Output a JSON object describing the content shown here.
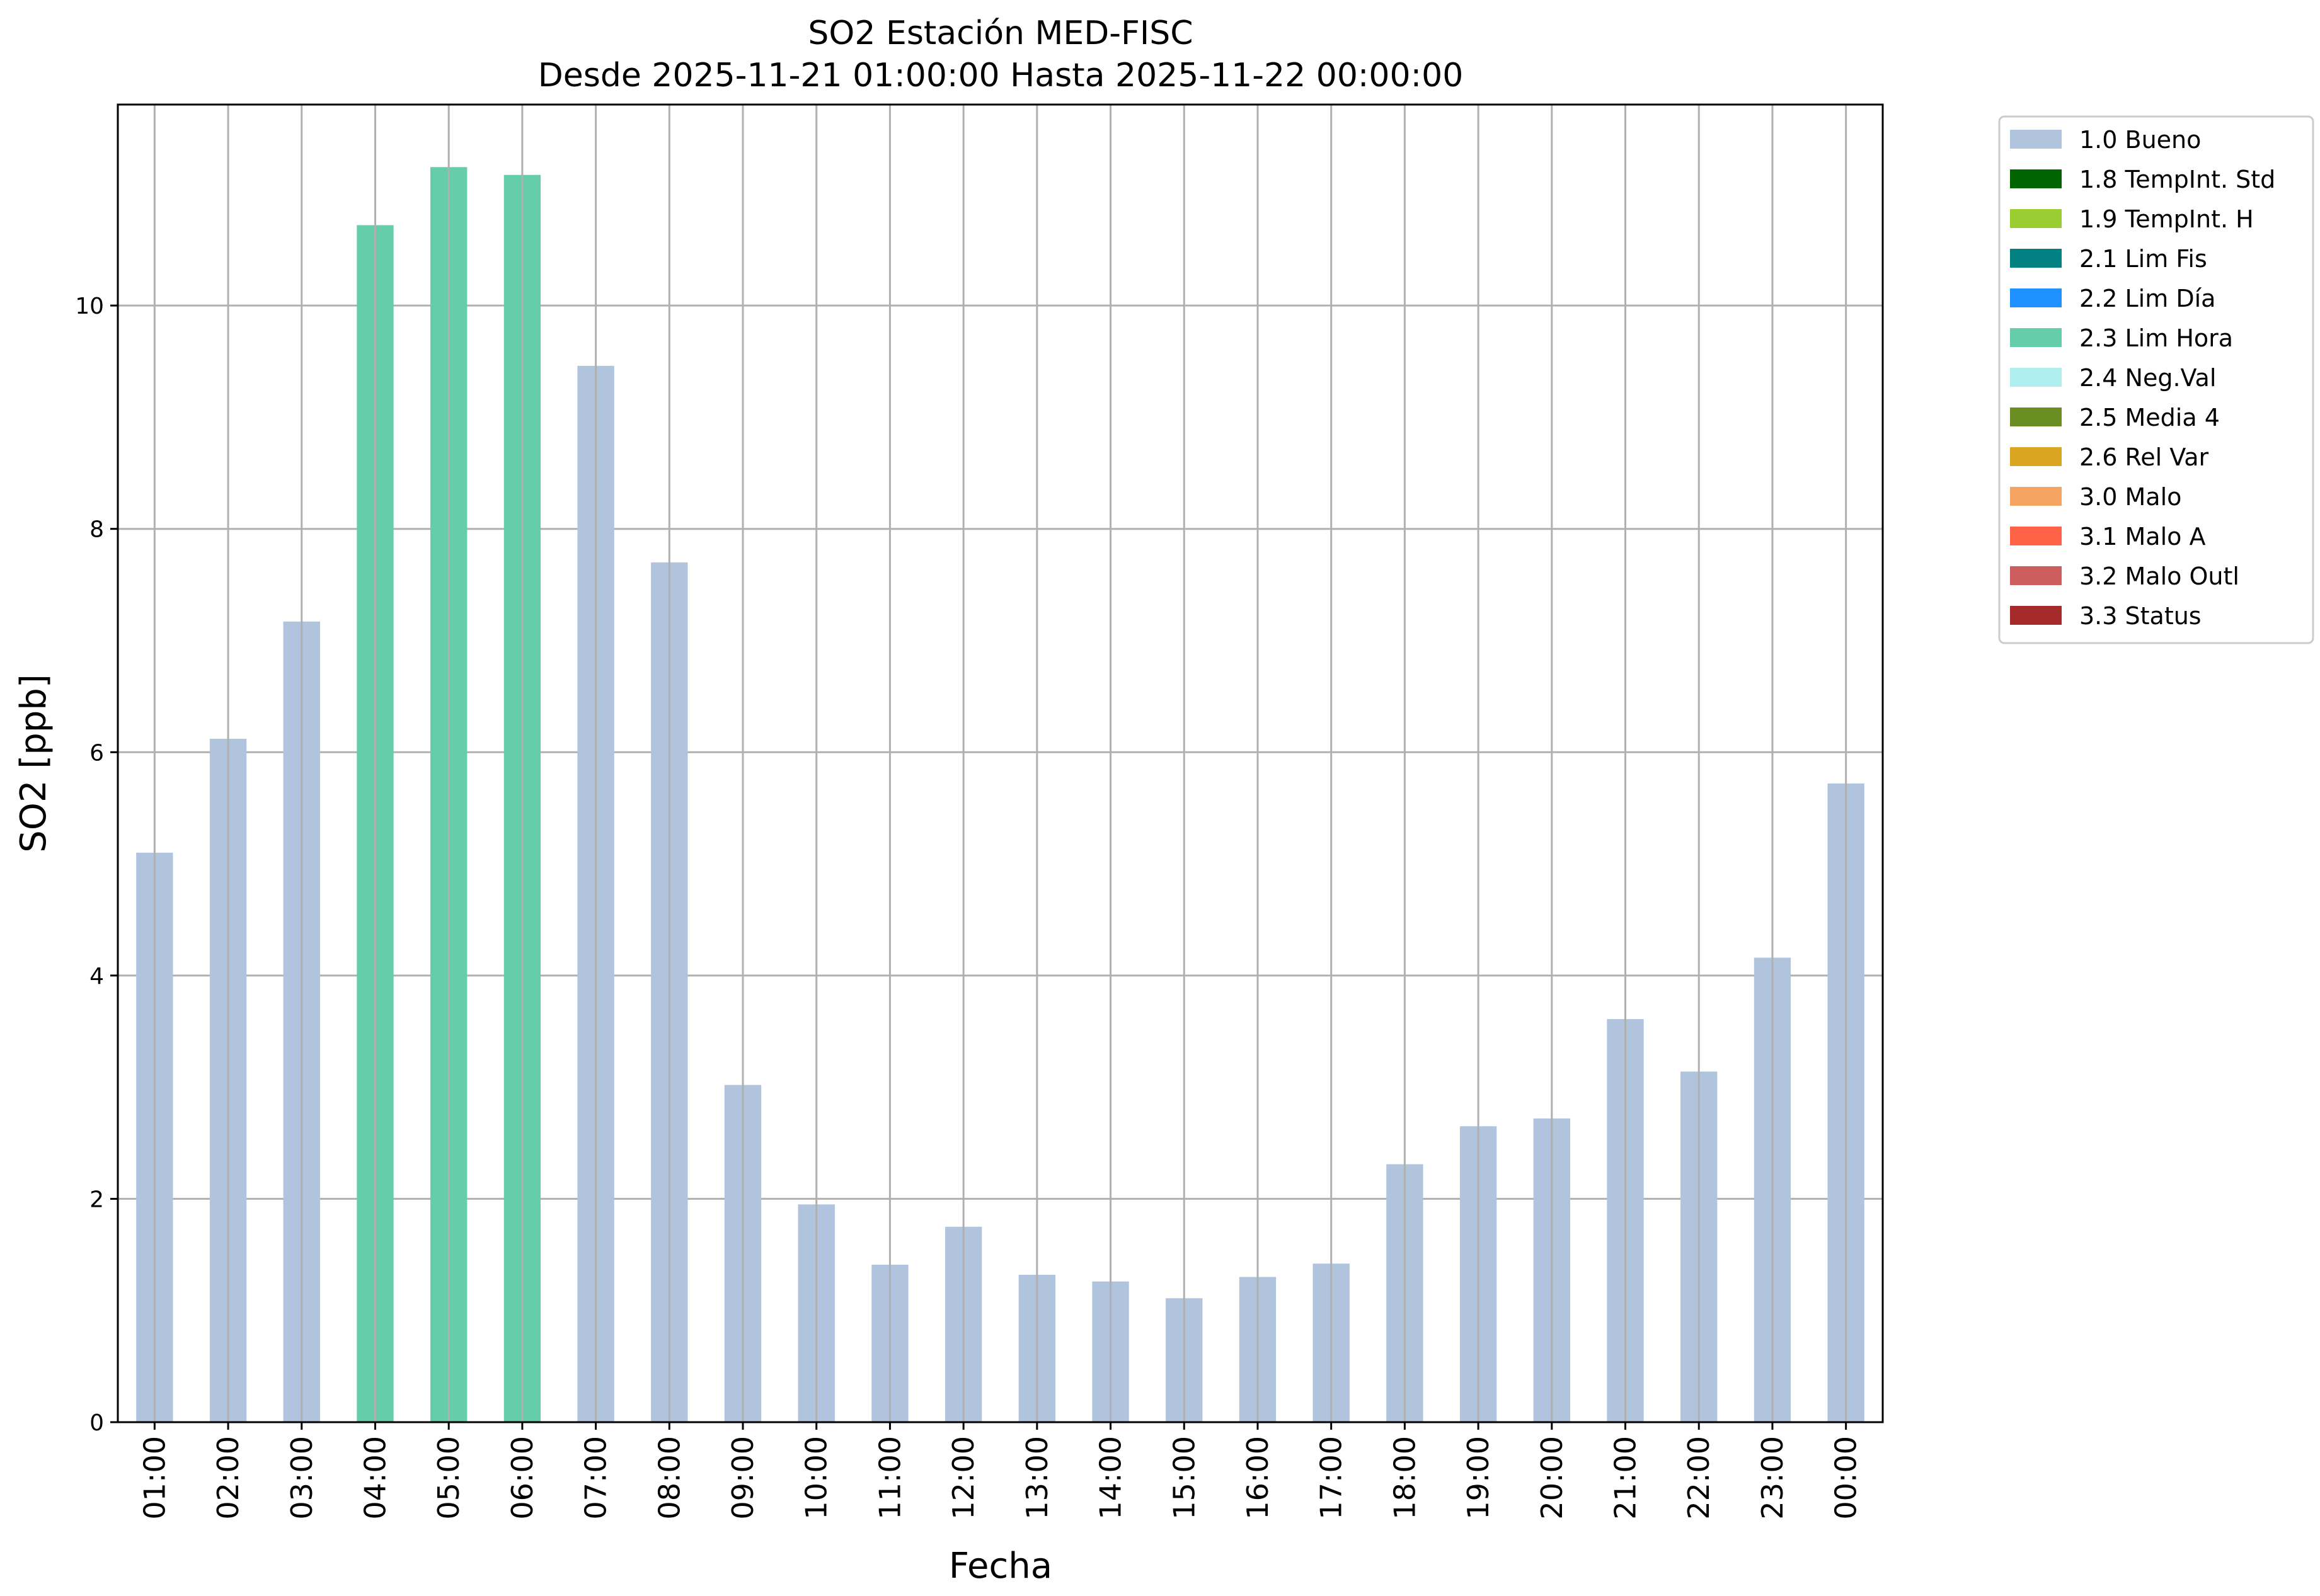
{
  "chart_data": {
    "type": "bar",
    "title": "SO2 Estación MED-FISC",
    "subtitle": "Desde 2025-11-21 01:00:00 Hasta 2025-11-22 00:00:00",
    "xlabel": "Fecha",
    "ylabel": "SO2 [ppb]",
    "ylim": [
      0,
      11.8
    ],
    "yticks": [
      "0",
      "2",
      "4",
      "6",
      "8",
      "10"
    ],
    "grid": true,
    "legend_position": "outside-top-right",
    "categories": [
      "01:00",
      "02:00",
      "03:00",
      "04:00",
      "05:00",
      "06:00",
      "07:00",
      "08:00",
      "09:00",
      "10:00",
      "11:00",
      "12:00",
      "13:00",
      "14:00",
      "15:00",
      "16:00",
      "17:00",
      "18:00",
      "19:00",
      "20:00",
      "21:00",
      "22:00",
      "23:00",
      "00:00"
    ],
    "values": [
      5.1,
      6.12,
      7.17,
      10.72,
      11.24,
      11.17,
      9.46,
      7.7,
      3.02,
      1.95,
      1.41,
      1.75,
      1.32,
      1.26,
      1.11,
      1.3,
      1.42,
      2.31,
      2.65,
      2.72,
      3.61,
      3.14,
      4.16,
      5.72
    ],
    "flags": [
      "1.0 Bueno",
      "1.0 Bueno",
      "1.0 Bueno",
      "2.3 Lim Hora",
      "2.3 Lim Hora",
      "2.3 Lim Hora",
      "1.0 Bueno",
      "1.0 Bueno",
      "1.0 Bueno",
      "1.0 Bueno",
      "1.0 Bueno",
      "1.0 Bueno",
      "1.0 Bueno",
      "1.0 Bueno",
      "1.0 Bueno",
      "1.0 Bueno",
      "1.0 Bueno",
      "1.0 Bueno",
      "1.0 Bueno",
      "1.0 Bueno",
      "1.0 Bueno",
      "1.0 Bueno",
      "1.0 Bueno",
      "1.0 Bueno"
    ],
    "legend": [
      {
        "label": "1.0 Bueno",
        "color": "#b0c4de"
      },
      {
        "label": "1.8 TempInt. Std",
        "color": "#006400"
      },
      {
        "label": "1.9 TempInt. H",
        "color": "#9acd32"
      },
      {
        "label": "2.1 Lim Fis",
        "color": "#008080"
      },
      {
        "label": "2.2 Lim Día",
        "color": "#1e90ff"
      },
      {
        "label": "2.3 Lim Hora",
        "color": "#66cdaa"
      },
      {
        "label": "2.4 Neg.Val",
        "color": "#afeeee"
      },
      {
        "label": "2.5 Media 4",
        "color": "#6b8e23"
      },
      {
        "label": "2.6 Rel Var",
        "color": "#daa520"
      },
      {
        "label": "3.0 Malo",
        "color": "#f4a460"
      },
      {
        "label": "3.1 Malo A",
        "color": "#ff6347"
      },
      {
        "label": "3.2 Malo Outl",
        "color": "#cd5c5c"
      },
      {
        "label": "3.3 Status",
        "color": "#a52a2a"
      }
    ]
  }
}
